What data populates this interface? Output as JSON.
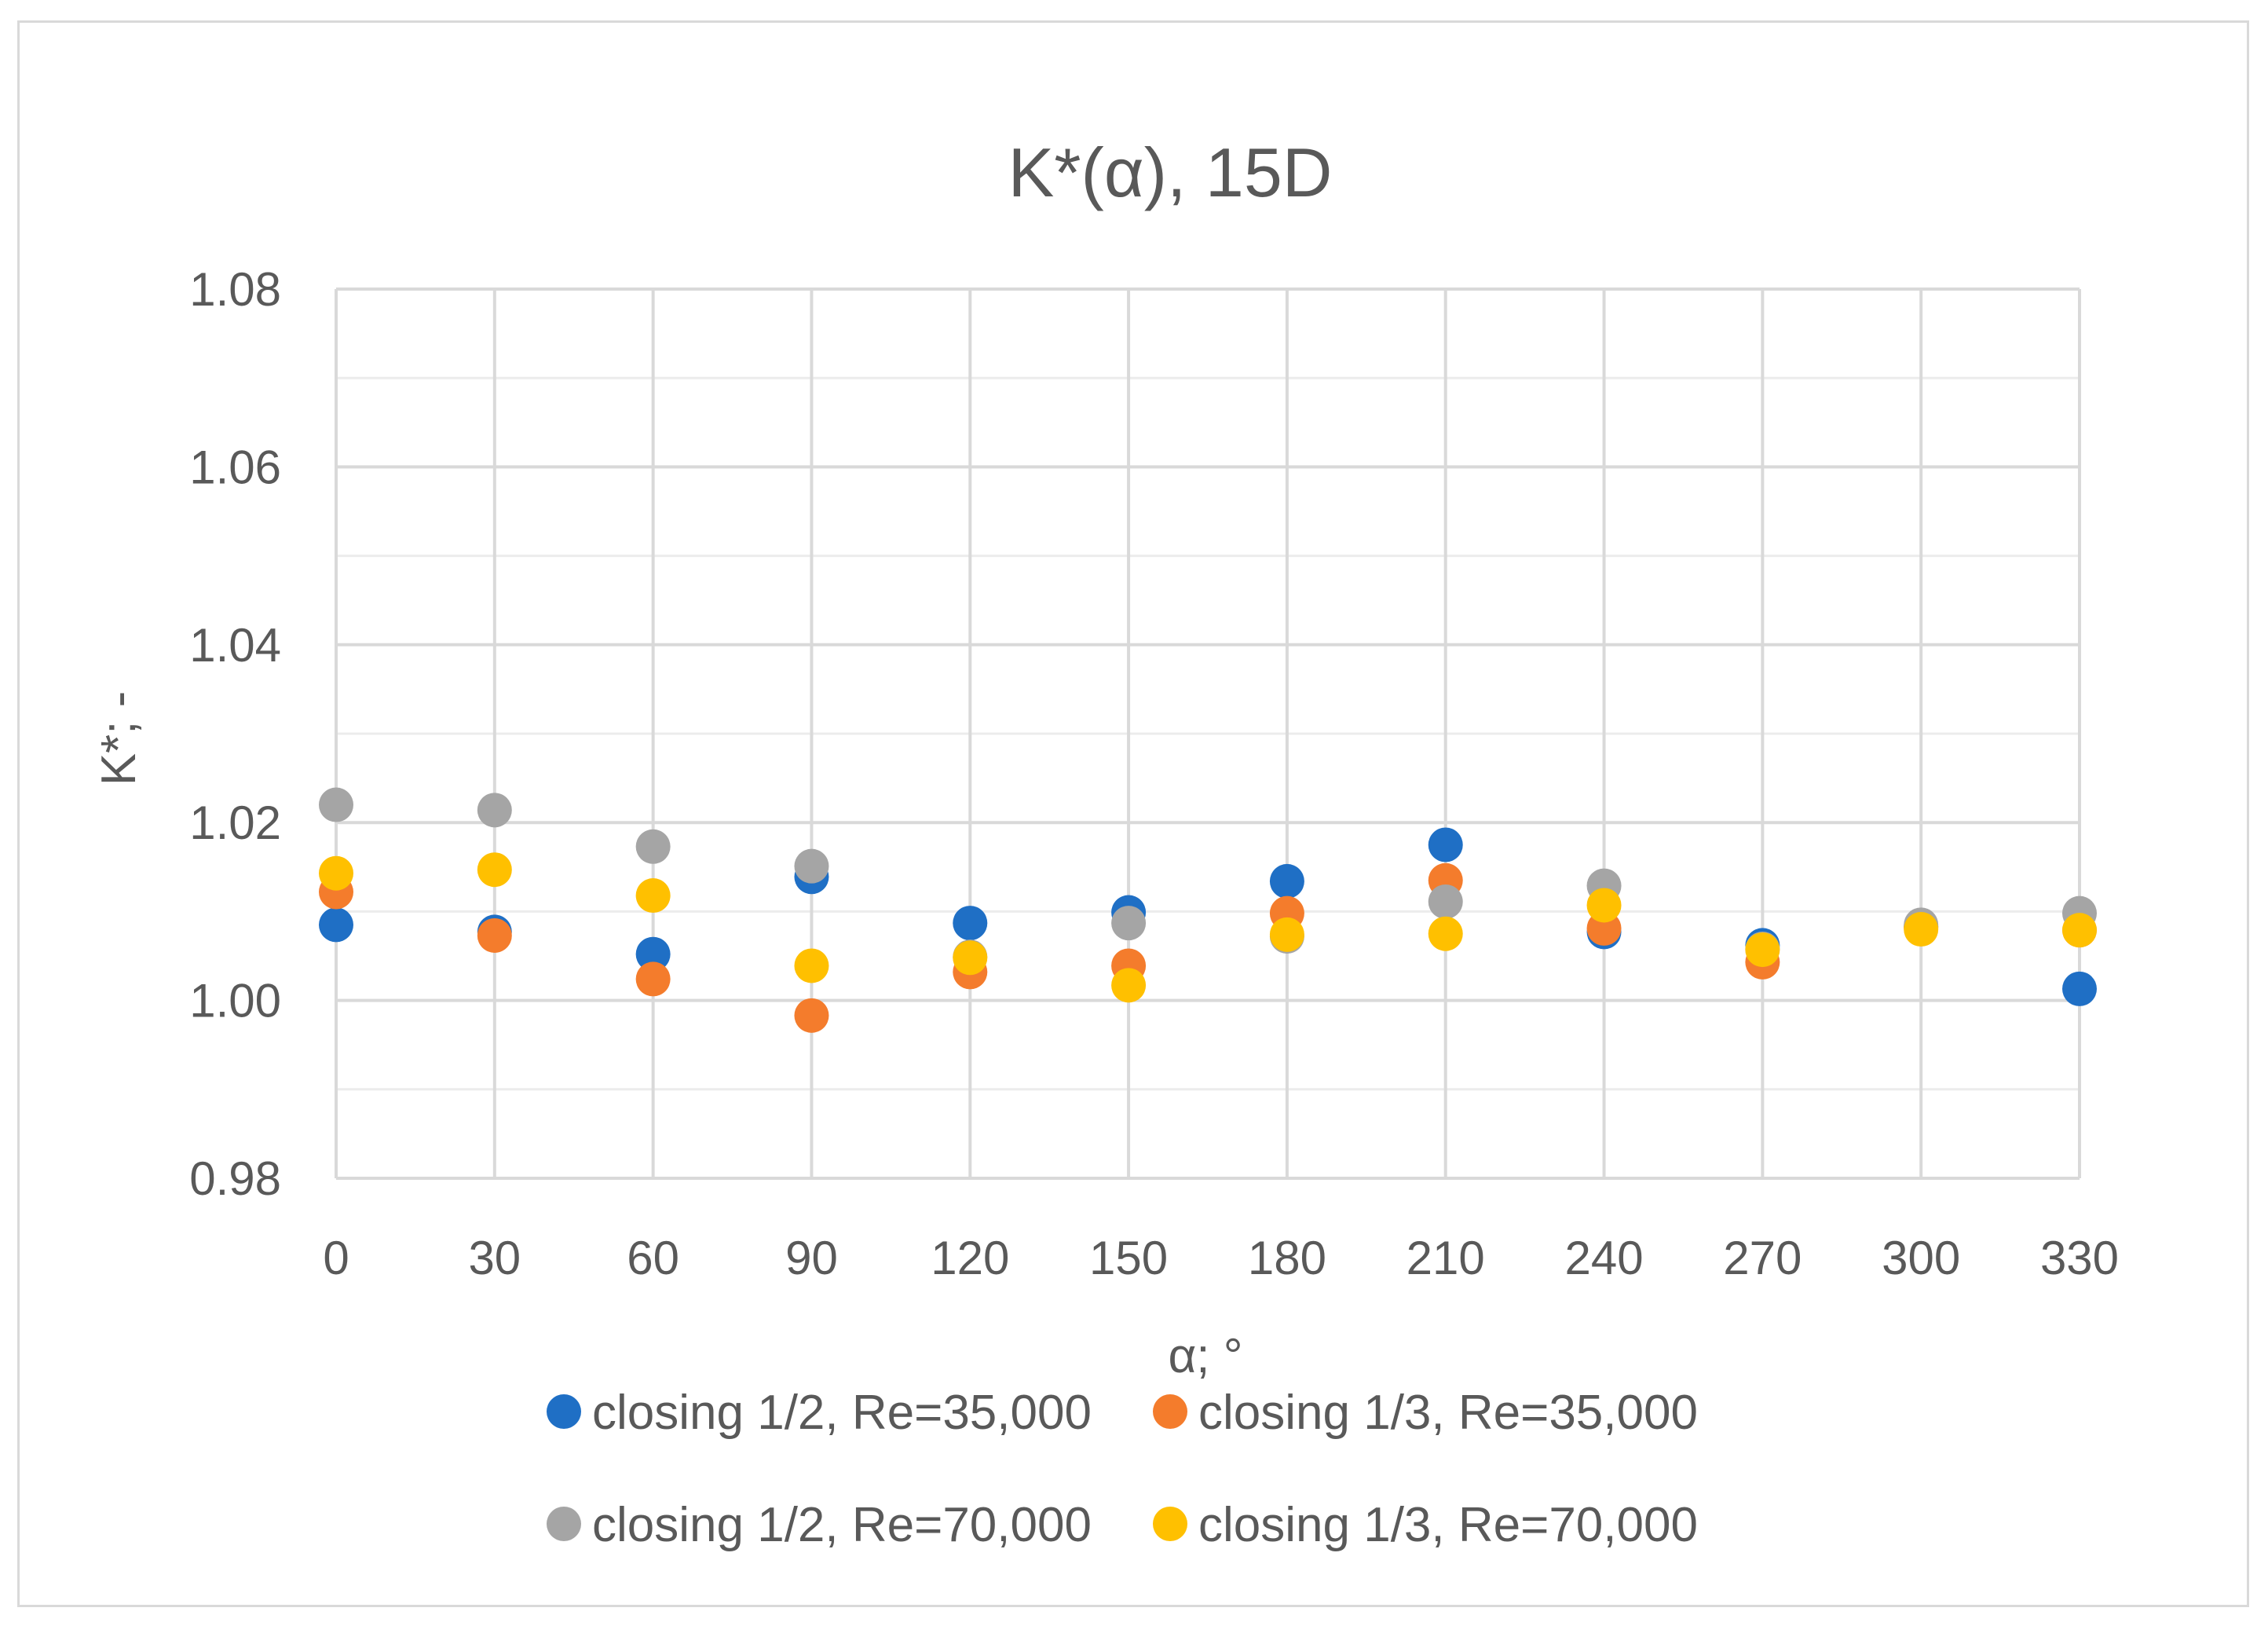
{
  "chart_data": {
    "type": "scatter",
    "title": "K*(α), 15D",
    "xlabel": "α; °",
    "ylabel": "K*; -",
    "x": [
      0,
      30,
      60,
      90,
      120,
      150,
      180,
      210,
      240,
      270,
      300,
      330
    ],
    "xlim": [
      0,
      330
    ],
    "ylim": [
      0.98,
      1.08
    ],
    "x_ticks": [
      "0",
      "30",
      "60",
      "90",
      "120",
      "150",
      "180",
      "210",
      "240",
      "270",
      "300",
      "330"
    ],
    "y_ticks": [
      "0.98",
      "1.00",
      "1.02",
      "1.04",
      "1.06",
      "1.08"
    ],
    "y_tick_values": [
      0.98,
      1.0,
      1.02,
      1.04,
      1.06,
      1.08
    ],
    "grid": true,
    "legend_position": "bottom",
    "series": [
      {
        "name": "closing 1/2, Re=35,000",
        "color": "#1f6fc5",
        "values": [
          1.0085,
          1.0077,
          1.0052,
          1.0139,
          1.0087,
          1.0099,
          1.0134,
          1.0175,
          1.0077,
          1.0062,
          1.0083,
          1.0013
        ]
      },
      {
        "name": "closing 1/3, Re=35,000",
        "color": "#f47c2c",
        "values": [
          1.0122,
          1.0073,
          1.0024,
          0.9983,
          1.0032,
          1.0039,
          1.0098,
          1.0135,
          1.0081,
          1.0043,
          1.0082,
          1.0079
        ]
      },
      {
        "name": "closing 1/2, Re=70,000",
        "color": "#a5a5a5",
        "values": [
          1.022,
          1.0214,
          1.0173,
          1.0151,
          1.0049,
          1.0087,
          1.0072,
          1.0111,
          1.0129,
          1.0058,
          1.0085,
          1.0098
        ]
      },
      {
        "name": "closing 1/3, Re=70,000",
        "color": "#ffc000",
        "values": [
          1.0143,
          1.0147,
          1.0118,
          1.0039,
          1.0048,
          1.0017,
          1.0074,
          1.0075,
          1.0107,
          1.0057,
          1.008,
          1.0079
        ]
      }
    ]
  }
}
